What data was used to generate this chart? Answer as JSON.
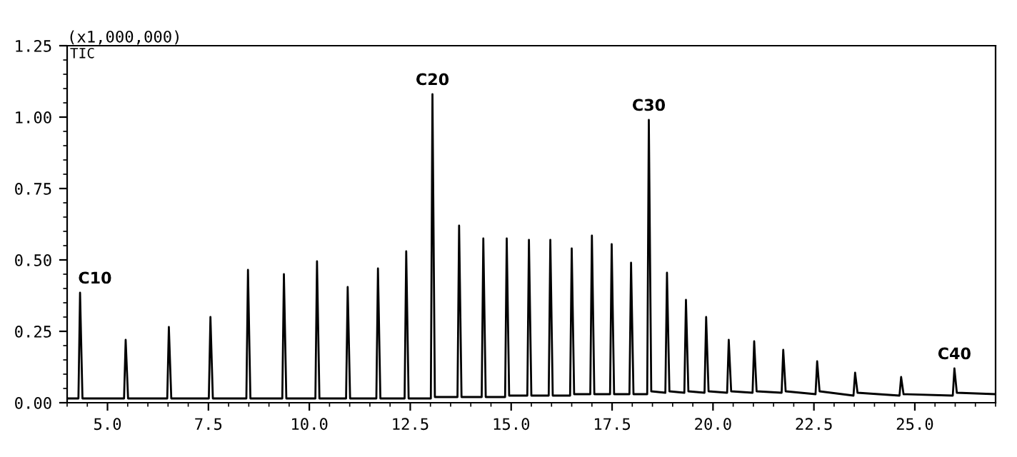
{
  "chart_data": {
    "type": "line",
    "ylabel": "(x1,000,000)",
    "annotations": [
      "TIC",
      {
        "text": "C10",
        "x": 4.32,
        "y": 0.385
      },
      {
        "text": "C20",
        "x": 13.05,
        "y": 1.08
      },
      {
        "text": "C30",
        "x": 18.41,
        "y": 0.99
      },
      {
        "text": "C40",
        "x": 25.98,
        "y": 0.12
      }
    ],
    "series": [
      {
        "color": "#000000",
        "x": [
          4.0,
          4.28,
          4.32,
          4.38,
          5.41,
          5.45,
          5.51,
          6.48,
          6.52,
          6.58,
          7.51,
          7.55,
          7.61,
          8.44,
          8.48,
          8.54,
          9.33,
          9.37,
          9.43,
          10.15,
          10.19,
          10.25,
          10.91,
          10.95,
          11.01,
          11.66,
          11.7,
          11.76,
          12.36,
          12.4,
          12.46,
          13.01,
          13.05,
          13.11,
          13.67,
          13.71,
          13.77,
          14.27,
          14.31,
          14.37,
          14.85,
          14.89,
          14.95,
          15.4,
          15.44,
          15.5,
          15.93,
          15.97,
          16.03,
          16.46,
          16.5,
          16.56,
          16.96,
          17.0,
          17.06,
          17.45,
          17.49,
          17.55,
          17.93,
          17.97,
          18.03,
          18.37,
          18.41,
          18.47,
          18.82,
          18.86,
          18.92,
          19.29,
          19.33,
          19.39,
          19.79,
          19.83,
          19.89,
          20.35,
          20.39,
          20.45,
          20.98,
          21.02,
          21.08,
          21.7,
          21.74,
          21.8,
          22.54,
          22.58,
          22.64,
          23.48,
          23.52,
          23.58,
          24.62,
          24.66,
          24.72,
          25.94,
          25.98,
          26.04,
          27.0
        ],
        "values": [
          0.015,
          0.015,
          0.385,
          0.015,
          0.015,
          0.22,
          0.015,
          0.015,
          0.265,
          0.015,
          0.015,
          0.3,
          0.015,
          0.015,
          0.465,
          0.015,
          0.015,
          0.45,
          0.015,
          0.015,
          0.495,
          0.015,
          0.015,
          0.405,
          0.015,
          0.015,
          0.47,
          0.015,
          0.015,
          0.53,
          0.015,
          0.015,
          1.08,
          0.02,
          0.02,
          0.62,
          0.02,
          0.02,
          0.575,
          0.02,
          0.02,
          0.575,
          0.025,
          0.025,
          0.57,
          0.025,
          0.025,
          0.57,
          0.025,
          0.025,
          0.54,
          0.03,
          0.03,
          0.585,
          0.03,
          0.03,
          0.555,
          0.03,
          0.03,
          0.49,
          0.03,
          0.03,
          0.99,
          0.04,
          0.035,
          0.455,
          0.04,
          0.035,
          0.36,
          0.04,
          0.035,
          0.3,
          0.04,
          0.035,
          0.22,
          0.04,
          0.035,
          0.215,
          0.04,
          0.035,
          0.185,
          0.04,
          0.03,
          0.145,
          0.04,
          0.025,
          0.105,
          0.035,
          0.025,
          0.09,
          0.03,
          0.025,
          0.12,
          0.035,
          0.03
        ]
      }
    ],
    "xlim": [
      4.0,
      27.0
    ],
    "ylim": [
      0.0,
      1.25
    ],
    "xticks": [
      {
        "value": 5.0,
        "label": "5.0"
      },
      {
        "value": 7.5,
        "label": "7.5"
      },
      {
        "value": 10.0,
        "label": "10.0"
      },
      {
        "value": 12.5,
        "label": "12.5"
      },
      {
        "value": 15.0,
        "label": "15.0"
      },
      {
        "value": 17.5,
        "label": "17.5"
      },
      {
        "value": 20.0,
        "label": "20.0"
      },
      {
        "value": 22.5,
        "label": "22.5"
      },
      {
        "value": 25.0,
        "label": "25.0"
      }
    ],
    "yticks": [
      {
        "value": 0.0,
        "label": "0.00"
      },
      {
        "value": 0.25,
        "label": "0.25"
      },
      {
        "value": 0.5,
        "label": "0.50"
      },
      {
        "value": 0.75,
        "label": "0.75"
      },
      {
        "value": 1.0,
        "label": "1.00"
      },
      {
        "value": 1.25,
        "label": "1.25"
      }
    ],
    "grid": false,
    "legend": false,
    "marker": "none",
    "line_style": "solid"
  }
}
